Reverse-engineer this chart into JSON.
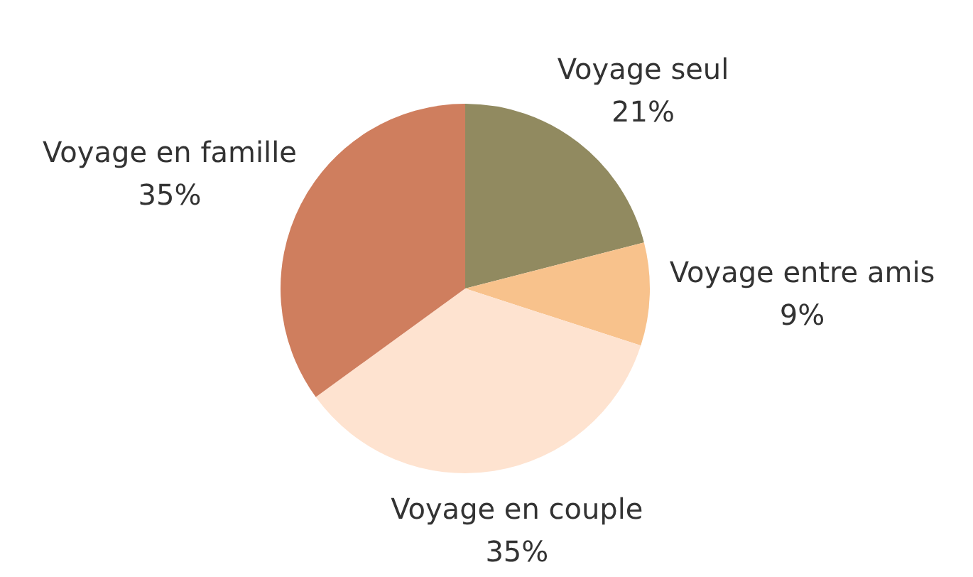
{
  "chart_data": {
    "type": "pie",
    "categories": [
      "Voyage seul",
      "Voyage entre amis",
      "Voyage en couple",
      "Voyage en famille"
    ],
    "values": [
      21,
      9,
      35,
      35
    ],
    "value_labels": [
      "21%",
      "9%",
      "35%",
      "35%"
    ],
    "colors": [
      "#918a60",
      "#f8c28c",
      "#fee3d0",
      "#cf7e5e"
    ],
    "legend": false
  }
}
